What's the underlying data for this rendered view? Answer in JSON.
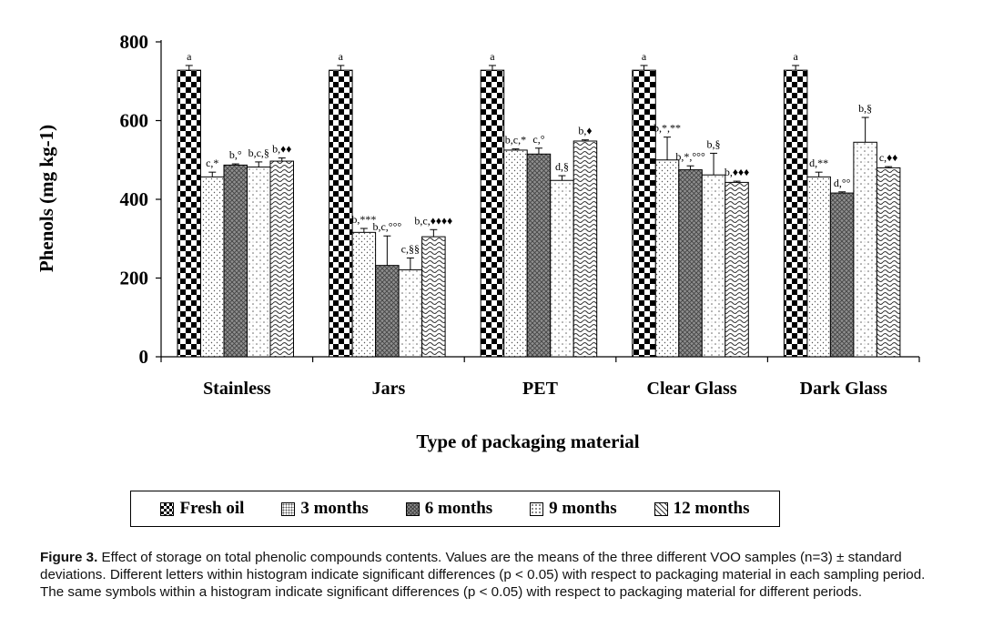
{
  "chart_data": {
    "type": "bar",
    "ylabel": "Phenols (mg kg-1)",
    "xlabel": "Type of packaging material",
    "ylim": [
      0,
      800
    ],
    "yticks": [
      0,
      200,
      400,
      600,
      800
    ],
    "categories": [
      "Stainless",
      "Jars",
      "PET",
      "Clear Glass",
      "Dark Glass"
    ],
    "series": [
      {
        "name": "Fresh oil",
        "values": [
          728,
          728,
          728,
          728,
          728
        ],
        "errors": [
          12,
          12,
          12,
          12,
          12
        ],
        "labels": [
          "a",
          "a",
          "a",
          "a",
          "a"
        ],
        "pattern": "checker"
      },
      {
        "name": "3 months",
        "values": [
          457,
          316,
          525,
          500,
          457
        ],
        "errors": [
          12,
          10,
          3,
          58,
          12
        ],
        "labels": [
          "c,*",
          "b,***",
          "b,c,*",
          "b,*,**",
          "d,**"
        ],
        "pattern": "dots"
      },
      {
        "name": "6 months",
        "values": [
          487,
          232,
          515,
          475,
          416
        ],
        "errors": [
          3,
          75,
          15,
          10,
          3
        ],
        "labels": [
          "b,°",
          "b,c,°°°",
          "c,°",
          "b,*,°°°",
          "d,°°"
        ],
        "pattern": "grid"
      },
      {
        "name": "9 months",
        "values": [
          482,
          221,
          448,
          462,
          545
        ],
        "errors": [
          13,
          30,
          12,
          55,
          63
        ],
        "labels": [
          "b,c,§",
          "c,§§",
          "d,§",
          "b,§",
          "b,§"
        ],
        "pattern": "dots2"
      },
      {
        "name": "12 months",
        "values": [
          497,
          305,
          548,
          443,
          480
        ],
        "errors": [
          8,
          18,
          3,
          3,
          3
        ],
        "labels": [
          "b,♦♦",
          "b,c,♦♦♦♦",
          "b,♦",
          "b,♦♦♦",
          "c,♦♦"
        ],
        "pattern": "waves"
      }
    ]
  },
  "legend": {
    "items": [
      {
        "label": "Fresh oil",
        "pattern": "checker"
      },
      {
        "label": "3 months",
        "pattern": "dots"
      },
      {
        "label": "6 months",
        "pattern": "grid"
      },
      {
        "label": "9 months",
        "pattern": "dots2"
      },
      {
        "label": "12 months",
        "pattern": "waves"
      }
    ]
  },
  "caption": {
    "figure_label": "Figure 3.",
    "text": "Effect of storage on total phenolic compounds contents. Values are the means of the three different VOO samples (n=3) ± standard deviations. Different letters within histogram indicate significant differences (p < 0.05) with respect to packaging material in each sampling period. The same symbols within a histogram indicate significant differences (p < 0.05) with respect to packaging material for different periods."
  }
}
